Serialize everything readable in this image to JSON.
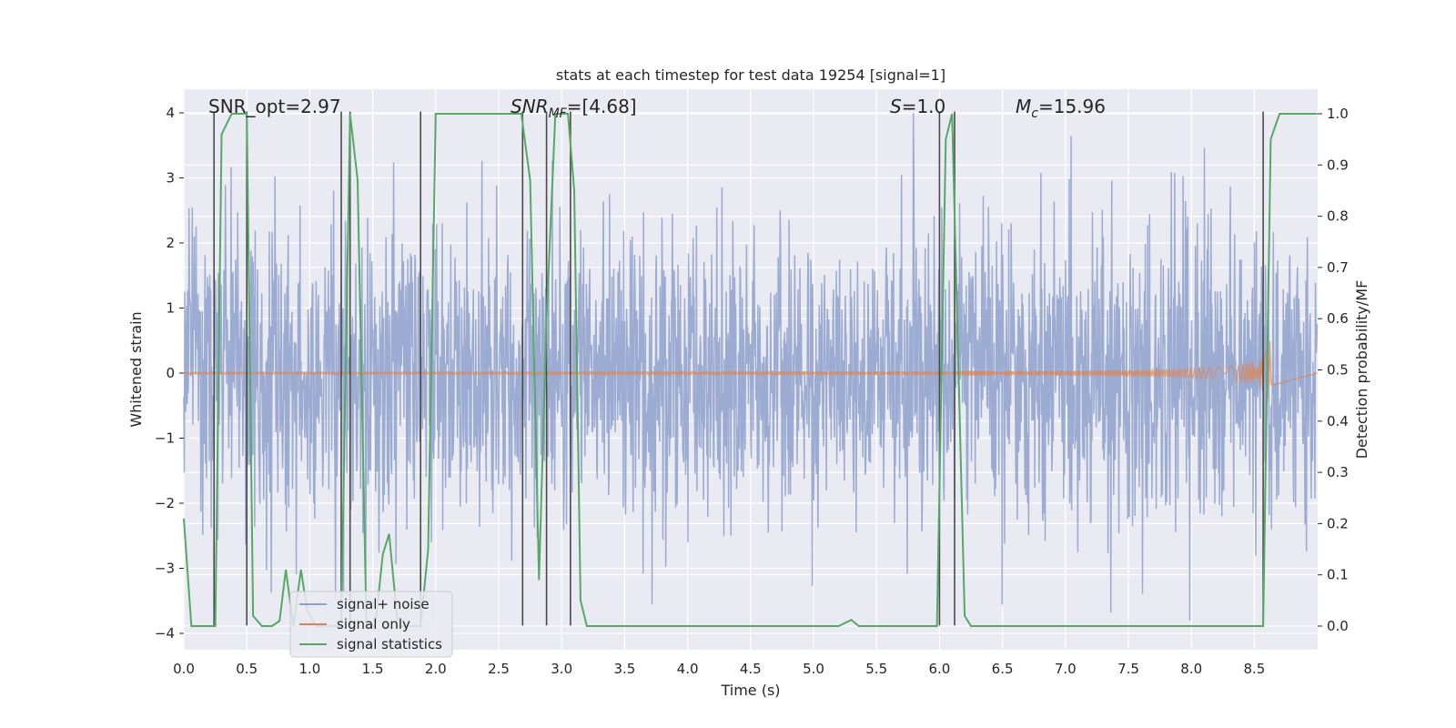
{
  "chart_data": {
    "type": "line",
    "title": "stats at each timestep for test data 19254 [signal=1]",
    "xlabel": "Time (s)",
    "ylabel": "Whitened strain",
    "y2label": "Detection probability/MF",
    "xlim": [
      0,
      9.0
    ],
    "ylim": [
      -4.25,
      4.4
    ],
    "y2lim": [
      -0.045,
      1.035
    ],
    "xticks": [
      "0.0",
      "0.5",
      "1.0",
      "1.5",
      "2.0",
      "2.5",
      "3.0",
      "3.5",
      "4.0",
      "4.5",
      "5.0",
      "5.5",
      "6.0",
      "6.5",
      "7.0",
      "7.5",
      "8.0",
      "8.5"
    ],
    "yticks": [
      "4",
      "3",
      "2",
      "1",
      "0",
      "−1",
      "−2",
      "−3",
      "−4"
    ],
    "y2ticks": [
      "1.0",
      "0.9",
      "0.8",
      "0.7",
      "0.6",
      "0.5",
      "0.4",
      "0.3",
      "0.2",
      "0.1",
      "0.0"
    ],
    "annotations": {
      "snr_opt": "SNR_opt=2.97",
      "snr_mf_main": "SNR",
      "snr_mf_sub": "MF",
      "snr_mf_value": "=[4.68]",
      "s_main": "S",
      "s_value": "=1.0",
      "mc_main": "M",
      "mc_sub": "c",
      "mc_value": "=15.96"
    },
    "legend": {
      "position": "lower-left",
      "entries": [
        "signal+ noise",
        "signal only",
        "signal statistics"
      ]
    },
    "colors": {
      "noise": "#8da0cb",
      "signal": "#dd8452",
      "stats": "#55a868",
      "vlines": "#4a4a4a",
      "background": "#eaeaf2",
      "grid": "#ffffff"
    },
    "series": [
      {
        "name": "signal statistics",
        "axis": "right",
        "x": [
          0.0,
          0.06,
          0.25,
          0.3,
          0.38,
          0.5,
          0.55,
          0.62,
          0.7,
          0.76,
          0.81,
          0.87,
          0.93,
          0.98,
          1.05,
          1.15,
          1.25,
          1.32,
          1.38,
          1.45,
          1.52,
          1.58,
          1.63,
          1.7,
          1.75,
          1.82,
          1.88,
          1.94,
          2.0,
          2.5,
          2.68,
          2.75,
          2.82,
          2.88,
          2.95,
          3.05,
          3.1,
          3.15,
          3.2,
          3.28,
          3.5,
          5.2,
          5.3,
          5.36,
          5.5,
          5.98,
          6.05,
          6.1,
          6.2,
          6.25,
          7.0,
          8.57,
          8.63,
          8.7,
          9.0
        ],
        "y": [
          0.21,
          0.0,
          0.0,
          0.96,
          1.0,
          1.0,
          0.02,
          0.0,
          0.0,
          0.01,
          0.11,
          0.0,
          0.11,
          0.03,
          0.0,
          0.0,
          0.0,
          1.0,
          0.87,
          0.0,
          0.0,
          0.14,
          0.18,
          0.0,
          0.0,
          0.0,
          0.0,
          0.15,
          1.0,
          1.0,
          1.0,
          0.87,
          0.09,
          0.6,
          1.0,
          1.0,
          0.85,
          0.05,
          0.0,
          0.0,
          0.0,
          0.0,
          0.012,
          0.0,
          0.0,
          0.0,
          0.95,
          1.0,
          0.02,
          0.0,
          0.0,
          0.0,
          0.95,
          1.0,
          1.0
        ]
      },
      {
        "name": "signal+ noise",
        "axis": "left",
        "description_range": [
          -3.8,
          4.0
        ]
      },
      {
        "name": "signal only",
        "axis": "left",
        "chirp_end_time": 8.65,
        "chirp_peak_amplitude": 0.7
      }
    ],
    "vlines": [
      0.24,
      0.5,
      1.25,
      1.32,
      1.88,
      2.69,
      2.88,
      3.07,
      6.0,
      6.12,
      8.57
    ]
  }
}
